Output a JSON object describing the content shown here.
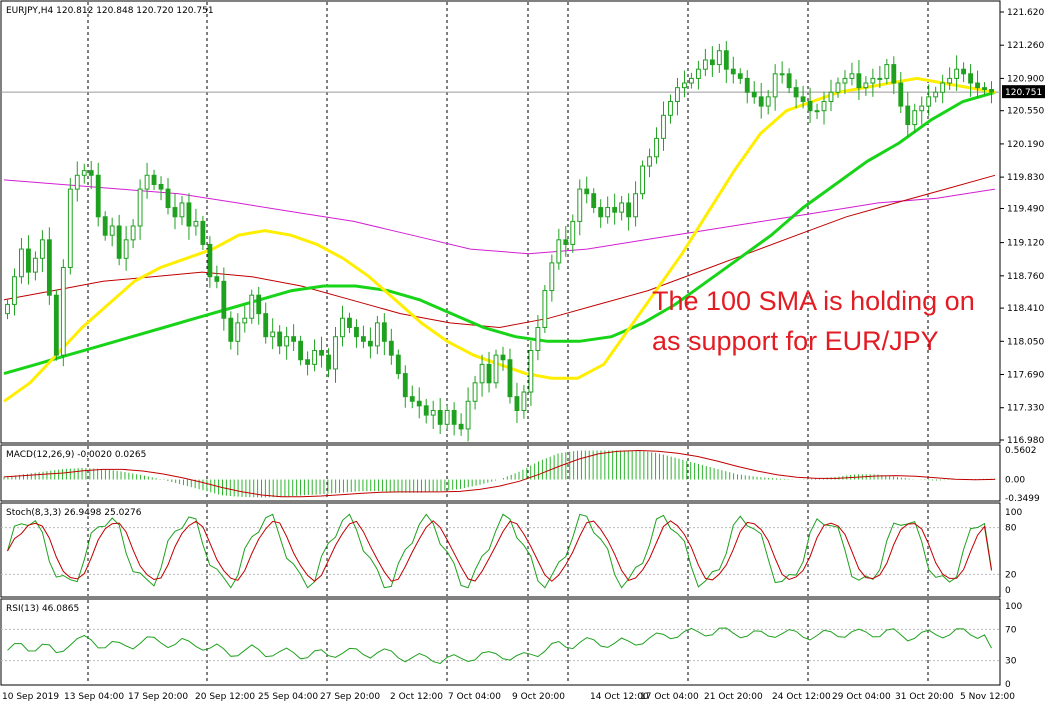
{
  "chart_data": {
    "type": "candlestick",
    "symbol_header": "EURJPY,H4  120.812 120.848 120.720 120.751",
    "last_price": "120.751",
    "annotation": [
      "The 100 SMA is holding on",
      "as support for EUR/JPY"
    ],
    "main_panel": {
      "price_ticks": [
        "121.620",
        "121.260",
        "120.900",
        "120.550",
        "120.190",
        "119.830",
        "119.490",
        "119.120",
        "118.760",
        "118.410",
        "118.050",
        "117.690",
        "117.330",
        "116.980"
      ],
      "ylim": [
        116.98,
        121.62
      ],
      "candle_closes": [
        118.45,
        118.75,
        119.05,
        118.8,
        118.95,
        119.15,
        118.55,
        117.9,
        118.85,
        119.7,
        119.85,
        119.9,
        119.85,
        119.4,
        119.2,
        119.3,
        118.95,
        119.15,
        119.3,
        119.7,
        119.85,
        119.75,
        119.7,
        119.5,
        119.4,
        119.55,
        119.3,
        119.35,
        119.1,
        118.75,
        118.7,
        118.3,
        118.05,
        118.25,
        118.3,
        118.55,
        118.35,
        118.1,
        118.15,
        118.0,
        118.1,
        118.05,
        117.85,
        117.8,
        117.95,
        117.9,
        117.75,
        118.1,
        118.3,
        118.2,
        118.1,
        118.05,
        118.0,
        118.25,
        118.05,
        117.9,
        117.7,
        117.45,
        117.4,
        117.35,
        117.25,
        117.3,
        117.15,
        117.3,
        117.15,
        117.1,
        117.4,
        117.6,
        117.8,
        117.6,
        117.9,
        117.85,
        117.45,
        117.3,
        117.5,
        117.95,
        118.2,
        118.6,
        118.9,
        119.15,
        119.1,
        119.35,
        119.7,
        119.65,
        119.5,
        119.4,
        119.5,
        119.45,
        119.55,
        119.4,
        119.65,
        119.95,
        120.05,
        120.25,
        120.5,
        120.65,
        120.8,
        120.85,
        120.9,
        121.0,
        121.1,
        121.05,
        121.2,
        121.0,
        120.95,
        120.9,
        120.75,
        120.7,
        120.6,
        120.7,
        120.95,
        120.95,
        120.8,
        120.7,
        120.65,
        120.55,
        120.55,
        120.65,
        120.75,
        120.85,
        120.9,
        120.95,
        120.8,
        120.85,
        120.9,
        120.9,
        121.05,
        120.85,
        120.6,
        120.4,
        120.55,
        120.6,
        120.7,
        120.75,
        120.85,
        120.9,
        121.0,
        120.95,
        120.85,
        120.8,
        120.78,
        120.751
      ],
      "sma20_yellow": [
        117.4,
        117.6,
        117.9,
        118.2,
        118.45,
        118.7,
        118.85,
        118.95,
        119.05,
        119.2,
        119.25,
        119.2,
        119.1,
        118.95,
        118.75,
        118.5,
        118.25,
        118.05,
        117.9,
        117.8,
        117.7,
        117.65,
        117.65,
        117.8,
        118.2,
        118.6,
        119.0,
        119.45,
        119.9,
        120.3,
        120.55,
        120.65,
        120.75,
        120.8,
        120.85,
        120.9,
        120.85,
        120.8,
        120.75
      ],
      "sma100_green": [
        117.7,
        117.8,
        117.9,
        118.0,
        118.1,
        118.2,
        118.3,
        118.4,
        118.5,
        118.6,
        118.65,
        118.65,
        118.6,
        118.5,
        118.35,
        118.2,
        118.1,
        118.05,
        118.05,
        118.1,
        118.25,
        118.45,
        118.7,
        118.95,
        119.2,
        119.5,
        119.75,
        120.0,
        120.2,
        120.45,
        120.65,
        120.75
      ],
      "sma200_red": [
        118.5,
        118.6,
        118.7,
        118.75,
        118.8,
        118.75,
        118.65,
        118.5,
        118.35,
        118.25,
        118.2,
        118.3,
        118.45,
        118.6,
        118.8,
        119.0,
        119.2,
        119.4,
        119.55,
        119.7,
        119.85
      ],
      "sma_magenta": [
        119.8,
        119.75,
        119.7,
        119.65,
        119.55,
        119.45,
        119.35,
        119.2,
        119.05,
        119.0,
        119.05,
        119.15,
        119.25,
        119.35,
        119.45,
        119.55,
        119.6,
        119.7
      ]
    },
    "macd_panel": {
      "label": "MACD(12,26,9) -0.0020 0.0265",
      "ticks": [
        "0.5602",
        "0.00",
        "-0.3499"
      ],
      "ylim": [
        -0.3499,
        0.5602
      ],
      "histogram": [
        0.05,
        0.1,
        0.15,
        0.2,
        0.22,
        0.2,
        0.15,
        0.08,
        0.0,
        -0.1,
        -0.2,
        -0.3,
        -0.33,
        -0.34,
        -0.33,
        -0.3,
        -0.28,
        -0.25,
        -0.22,
        -0.22,
        -0.25,
        -0.25,
        -0.22,
        -0.18,
        -0.1,
        0.0,
        0.15,
        0.35,
        0.5,
        0.55,
        0.55,
        0.55,
        0.55,
        0.5,
        0.4,
        0.3,
        0.2,
        0.1,
        0.05,
        0.02,
        0.0,
        0.02,
        0.05,
        0.1,
        0.1,
        0.05,
        0.0,
        -0.02,
        0.0,
        0.01,
        0.02
      ]
    },
    "stoch_panel": {
      "label": "Stoch(8,3,3) 26.9498 25.0276",
      "ticks": [
        "100",
        "80",
        "20",
        "0"
      ],
      "ylim": [
        0,
        100
      ]
    },
    "rsi_panel": {
      "label": "RSI(13) 46.0865",
      "ticks": [
        "100",
        "70",
        "30",
        "0"
      ],
      "ylim": [
        0,
        100
      ]
    },
    "time_ticks": [
      "10 Sep 2019",
      "13 Sep 04:00",
      "17 Sep 20:00",
      "20 Sep 12:00",
      "25 Sep 04:00",
      "27 Sep 20:00",
      "2 Oct 12:00",
      "7 Oct 04:00",
      "9 Oct 20:00",
      "14 Oct 12:00",
      "17 Oct 04:00",
      "21 Oct 20:00",
      "24 Oct 12:00",
      "29 Oct 04:00",
      "31 Oct 20:00",
      "5 Nov 12:00"
    ]
  }
}
